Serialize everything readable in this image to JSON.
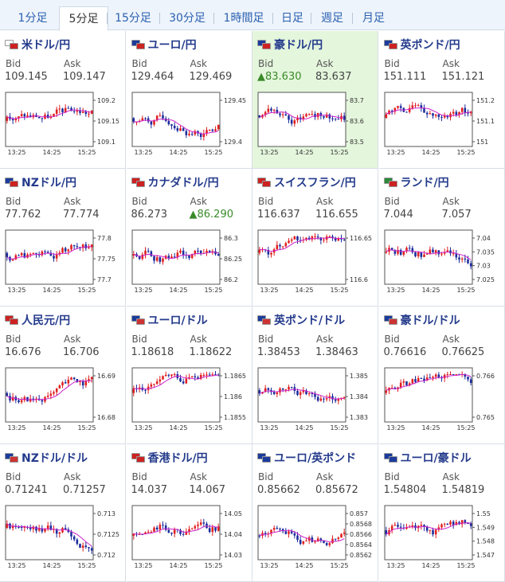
{
  "tabs": [
    {
      "label": "1分足",
      "active": false
    },
    {
      "label": "5分足",
      "active": true
    },
    {
      "label": "15分足",
      "active": false
    },
    {
      "label": "30分足",
      "active": false
    },
    {
      "label": "1時間足",
      "active": false
    },
    {
      "label": "日足",
      "active": false
    },
    {
      "label": "週足",
      "active": false
    },
    {
      "label": "月足",
      "active": false
    }
  ],
  "labels": {
    "bid": "Bid",
    "ask": "Ask"
  },
  "colors": {
    "up_candle": "#e02020",
    "down_candle": "#1c2c9c",
    "ma_line": "#cc22cc",
    "highlight": "#e4f6dc",
    "up_price": "#3a8a2a"
  },
  "pairs": [
    {
      "name": "米ドル/円",
      "bid": "109.145",
      "ask": "109.147",
      "flags": [
        "#ffffff",
        "#cc2222"
      ],
      "yticks": [
        "109.2",
        "109.15",
        "109.1"
      ],
      "xticks": [
        "13:25",
        "14:25",
        "15:25"
      ],
      "seed": 3
    },
    {
      "name": "ユーロ/円",
      "bid": "129.464",
      "ask": "129.469",
      "flags": [
        "#1c3c9c",
        "#cc2222"
      ],
      "yticks": [
        "129.45",
        "129.4"
      ],
      "xticks": [
        "13:25",
        "14:25",
        "15:25"
      ],
      "seed": 7
    },
    {
      "name": "豪ドル/円",
      "bid": "▲83.630",
      "ask": "83.637",
      "bid_up": true,
      "highlight": true,
      "flags": [
        "#1c3c9c",
        "#cc2222"
      ],
      "yticks": [
        "83.7",
        "83.6",
        "83.5"
      ],
      "xticks": [
        "13:25",
        "14:25",
        "15:25"
      ],
      "seed": 11
    },
    {
      "name": "英ポンド/円",
      "bid": "151.111",
      "ask": "151.121",
      "flags": [
        "#1c3c9c",
        "#cc2222"
      ],
      "yticks": [
        "151.2",
        "151.1",
        "151"
      ],
      "xticks": [
        "13:25",
        "14:25",
        "15:25"
      ],
      "seed": 13
    },
    {
      "name": "NZドル/円",
      "bid": "77.762",
      "ask": "77.774",
      "flags": [
        "#1c3c9c",
        "#cc2222"
      ],
      "yticks": [
        "77.8",
        "77.75",
        "77.7"
      ],
      "xticks": [
        "13:25",
        "14:25",
        "15:25"
      ],
      "seed": 17
    },
    {
      "name": "カナダドル/円",
      "bid": "86.273",
      "ask": "▲86.290",
      "ask_up": true,
      "flags": [
        "#cc2222",
        "#cc2222"
      ],
      "yticks": [
        "86.3",
        "86.25",
        "86.2"
      ],
      "xticks": [
        "13:25",
        "14:25",
        "15:25"
      ],
      "seed": 19
    },
    {
      "name": "スイスフラン/円",
      "bid": "116.637",
      "ask": "116.655",
      "flags": [
        "#cc2222",
        "#cc2222"
      ],
      "yticks": [
        "116.65",
        "116.6"
      ],
      "xticks": [
        "13:25",
        "14:25",
        "15:25"
      ],
      "seed": 23
    },
    {
      "name": "ランド/円",
      "bid": "7.044",
      "ask": "7.057",
      "flags": [
        "#2a8a3a",
        "#cc2222"
      ],
      "yticks": [
        "7.04",
        "7.035",
        "7.03",
        "7.025"
      ],
      "xticks": [
        "13:25",
        "14:25",
        "15:25"
      ],
      "seed": 29
    },
    {
      "name": "人民元/円",
      "bid": "16.676",
      "ask": "16.706",
      "flags": [
        "#cc2222",
        "#cc2222"
      ],
      "yticks": [
        "16.69",
        "16.68"
      ],
      "xticks": [
        "13:25",
        "14:25",
        "15:25"
      ],
      "seed": 31
    },
    {
      "name": "ユーロ/ドル",
      "bid": "1.18618",
      "ask": "1.18622",
      "flags": [
        "#1c3c9c",
        "#cc3333"
      ],
      "yticks": [
        "1.1865",
        "1.186",
        "1.1855"
      ],
      "xticks": [
        "13:25",
        "14:25",
        "15:25"
      ],
      "seed": 37
    },
    {
      "name": "英ポンド/ドル",
      "bid": "1.38453",
      "ask": "1.38463",
      "flags": [
        "#1c3c9c",
        "#cc3333"
      ],
      "yticks": [
        "1.385",
        "1.384",
        "1.383"
      ],
      "xticks": [
        "13:25",
        "14:25",
        "15:25"
      ],
      "seed": 41
    },
    {
      "name": "豪ドル/ドル",
      "bid": "0.76616",
      "ask": "0.76625",
      "flags": [
        "#1c3c9c",
        "#cc3333"
      ],
      "yticks": [
        "0.766",
        "0.765"
      ],
      "xticks": [
        "13:25",
        "14:25",
        "15:25"
      ],
      "seed": 43
    },
    {
      "name": "NZドル/ドル",
      "bid": "0.71241",
      "ask": "0.71257",
      "flags": [
        "#1c3c9c",
        "#cc3333"
      ],
      "yticks": [
        "0.713",
        "0.7125",
        "0.712"
      ],
      "xticks": [
        "13:25",
        "14:25",
        "15:25"
      ],
      "seed": 47
    },
    {
      "name": "香港ドル/円",
      "bid": "14.037",
      "ask": "14.067",
      "flags": [
        "#cc2222",
        "#cc2222"
      ],
      "yticks": [
        "14.05",
        "14.04",
        "14.03"
      ],
      "xticks": [
        "13:25",
        "14:25",
        "15:25"
      ],
      "seed": 53
    },
    {
      "name": "ユーロ/英ポンド",
      "bid": "0.85662",
      "ask": "0.85672",
      "flags": [
        "#1c3c9c",
        "#1c3c9c"
      ],
      "yticks": [
        "0.857",
        "0.8568",
        "0.8566",
        "0.8564",
        "0.8562"
      ],
      "xticks": [
        "13:25",
        "14:25",
        "15:25"
      ],
      "seed": 59
    },
    {
      "name": "ユーロ/豪ドル",
      "bid": "1.54804",
      "ask": "1.54819",
      "flags": [
        "#1c3c9c",
        "#1c3c9c"
      ],
      "yticks": [
        "1.55",
        "1.549",
        "1.548",
        "1.547"
      ],
      "xticks": [
        "13:25",
        "14:25",
        "15:25"
      ],
      "seed": 61
    }
  ]
}
